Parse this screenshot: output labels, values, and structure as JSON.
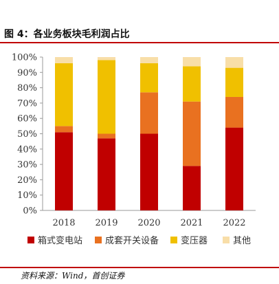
{
  "figure": {
    "title": "图 4：各业务板块毛利润占比",
    "source": "资料来源：Wind，首创证券"
  },
  "chart_data": {
    "type": "bar",
    "stacked": true,
    "categories": [
      "2018",
      "2019",
      "2020",
      "2021",
      "2022"
    ],
    "series": [
      {
        "name": "箱式变电站",
        "color": "#c00000",
        "values": [
          51,
          47,
          50,
          29,
          54
        ]
      },
      {
        "name": "成套开关设备",
        "color": "#e97120",
        "values": [
          4,
          3,
          27,
          42,
          20
        ]
      },
      {
        "name": "变压器",
        "color": "#f0c000",
        "values": [
          41,
          48,
          19,
          23,
          19
        ]
      },
      {
        "name": "其他",
        "color": "#f8dea8",
        "values": [
          4,
          2,
          4,
          6,
          7
        ]
      }
    ],
    "ylim": [
      0,
      100
    ],
    "yticks": [
      "0%",
      "10%",
      "20%",
      "30%",
      "40%",
      "50%",
      "60%",
      "70%",
      "80%",
      "90%",
      "100%"
    ],
    "xlabel": "",
    "ylabel": "",
    "grid": false,
    "legend_position": "bottom"
  }
}
